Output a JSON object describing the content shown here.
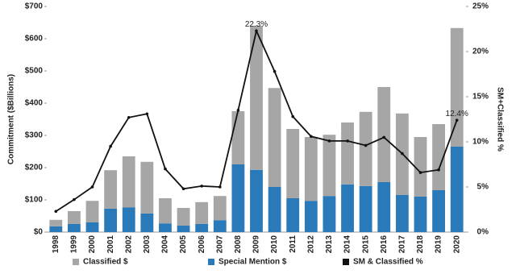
{
  "chart_data": {
    "type": "bar-line",
    "y_axis_label": "Commitment ($Billions)",
    "y2_axis_label": "SM+Classified %",
    "categories": [
      "1998",
      "1999",
      "2000",
      "2001",
      "2002",
      "2003",
      "2004",
      "2005",
      "2006",
      "2007",
      "2008",
      "2009",
      "2010",
      "2011",
      "2012",
      "2013",
      "2014",
      "2015",
      "2016",
      "2017",
      "2018",
      "2019",
      "2020"
    ],
    "series": [
      {
        "name": "Classified $",
        "color": "#a6a6a6",
        "type": "bar",
        "values": [
          20,
          40,
          67,
          119,
          158,
          160,
          78,
          55,
          68,
          75,
          165,
          447,
          307,
          215,
          198,
          190,
          192,
          230,
          295,
          253,
          185,
          205,
          368
        ]
      },
      {
        "name": "Special Mention $",
        "color": "#2a7ab9",
        "type": "bar",
        "values": [
          18,
          25,
          30,
          73,
          77,
          58,
          27,
          20,
          25,
          37,
          210,
          193,
          140,
          105,
          97,
          112,
          148,
          143,
          155,
          115,
          110,
          130,
          265
        ]
      },
      {
        "name": "SM & Classified %",
        "color": "#111111",
        "type": "line",
        "axis": "y2",
        "values": [
          2.3,
          3.6,
          5.0,
          9.5,
          12.7,
          13.1,
          7.0,
          4.8,
          5.1,
          5.0,
          13.5,
          22.3,
          17.8,
          12.8,
          10.6,
          10.1,
          10.1,
          9.6,
          10.5,
          8.7,
          6.6,
          6.9,
          12.4
        ],
        "value_labels": [
          null,
          null,
          null,
          null,
          null,
          null,
          null,
          null,
          null,
          null,
          null,
          "22.3%",
          null,
          null,
          null,
          null,
          null,
          null,
          null,
          null,
          null,
          null,
          "12.4%"
        ]
      }
    ],
    "ylim": [
      0,
      700
    ],
    "yticks": [
      {
        "value": 0,
        "label": "$0"
      },
      {
        "value": 100,
        "label": "$100"
      },
      {
        "value": 200,
        "label": "$200"
      },
      {
        "value": 300,
        "label": "$300"
      },
      {
        "value": 400,
        "label": "$400"
      },
      {
        "value": 500,
        "label": "$500"
      },
      {
        "value": 600,
        "label": "$600"
      },
      {
        "value": 700,
        "label": "$700"
      }
    ],
    "y2lim": [
      0,
      25
    ],
    "y2ticks": [
      {
        "value": 0,
        "label": "0%"
      },
      {
        "value": 5,
        "label": "5%"
      },
      {
        "value": 10,
        "label": "10%"
      },
      {
        "value": 15,
        "label": "15%"
      },
      {
        "value": 20,
        "label": "20%"
      },
      {
        "value": 25,
        "label": "25%"
      }
    ],
    "grid": false,
    "legend": "bottom"
  }
}
